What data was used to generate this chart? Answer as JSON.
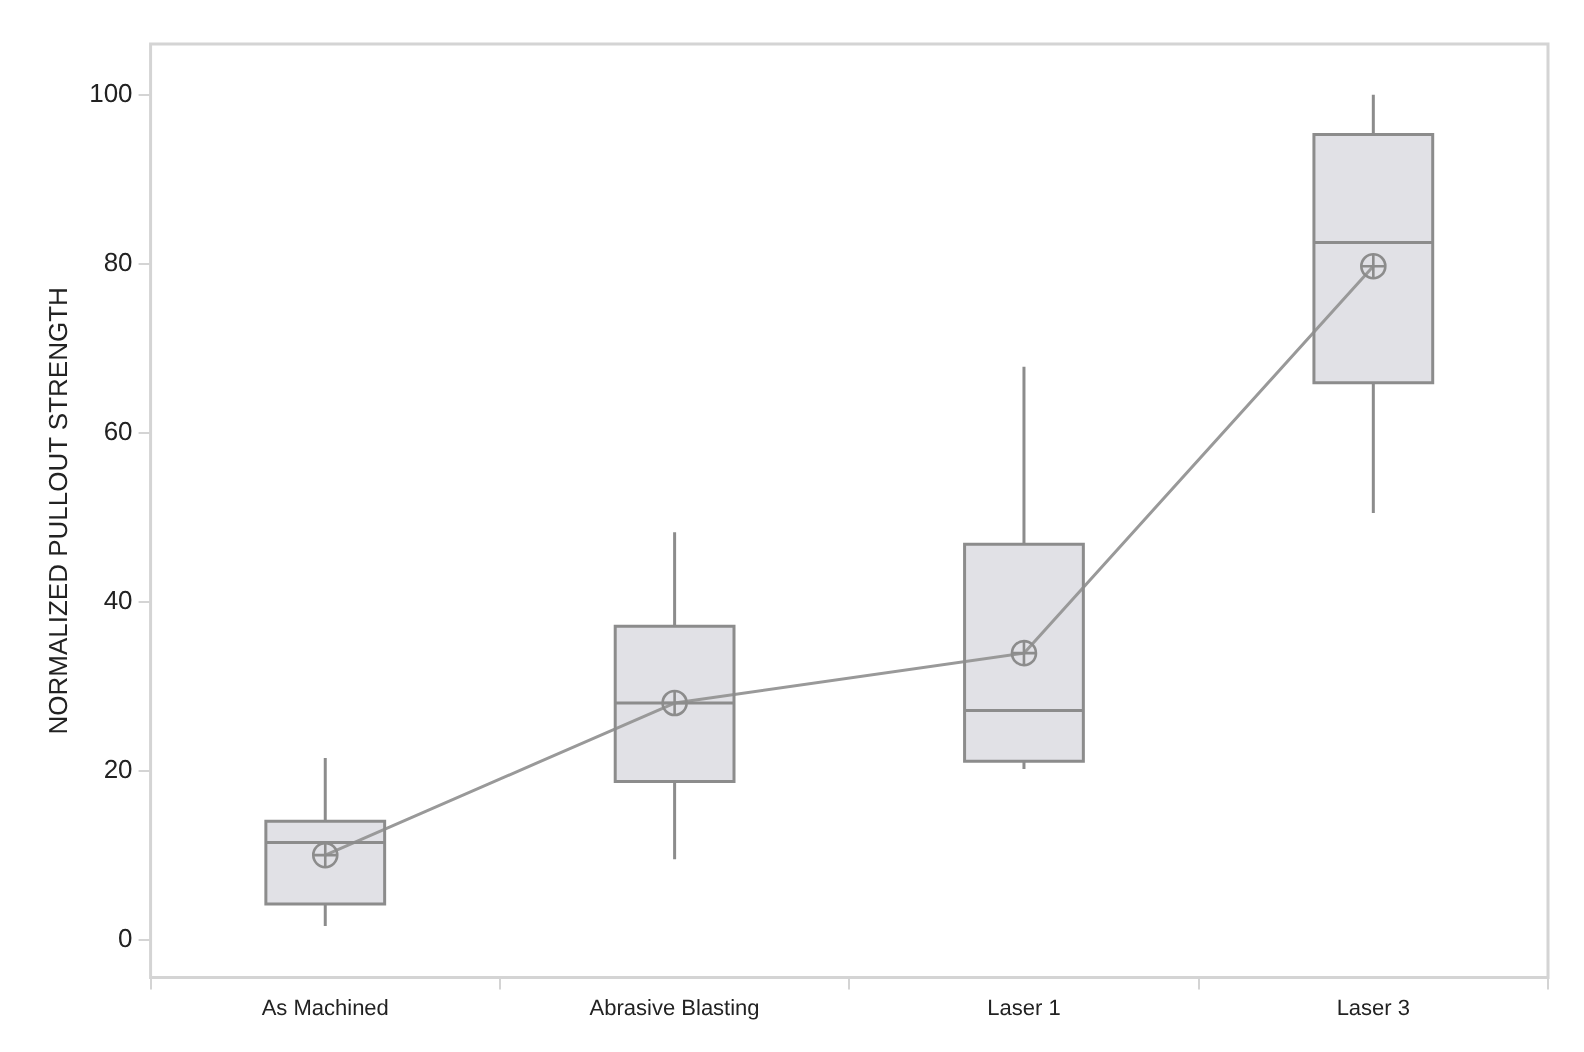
{
  "chart_data": {
    "type": "box",
    "ylabel": "NORMALIZED PULLOUT STRENGTH",
    "categories": [
      "As Machined",
      "Abrasive Blasting",
      "Laser 1",
      "Laser 3"
    ],
    "ylim": [
      -4.5,
      106
    ],
    "yticks": [
      0,
      20,
      40,
      60,
      80,
      100
    ],
    "grid": false,
    "legend": false,
    "series": [
      {
        "color": "#e1e1e6",
        "boxes": [
          {
            "low": 1.6,
            "q1": 4.2,
            "median": 11.5,
            "q3": 14,
            "high": 21.5
          },
          {
            "low": 9.5,
            "q1": 18.7,
            "median": 28,
            "q3": 37.1,
            "high": 48.2
          },
          {
            "low": 20.2,
            "q1": 21.1,
            "median": 27.1,
            "q3": 46.8,
            "high": 67.8
          },
          {
            "low": 50.5,
            "q1": 65.9,
            "median": 82.5,
            "q3": 95.3,
            "high": 100
          }
        ]
      },
      {
        "type": "line",
        "color": "#999999",
        "marker": "circle",
        "values": [
          10,
          28,
          33.9,
          79.7
        ]
      }
    ]
  }
}
